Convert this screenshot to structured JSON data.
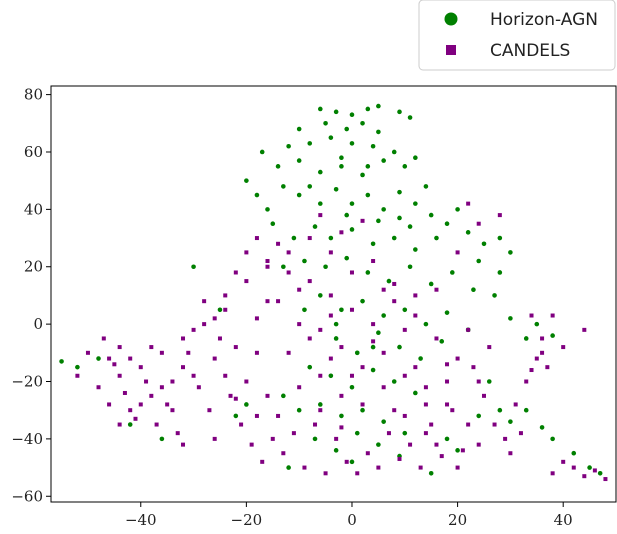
{
  "chart_data": {
    "type": "scatter",
    "title": "",
    "xlabel": "",
    "ylabel": "",
    "xlim": [
      -57,
      50
    ],
    "ylim": [
      -62,
      83
    ],
    "xticks": [
      -40,
      -20,
      0,
      20,
      40
    ],
    "yticks": [
      -60,
      -40,
      -20,
      0,
      20,
      40,
      60,
      80
    ],
    "grid": false,
    "legend_position": "top-right",
    "series": [
      {
        "name": "Horizon-AGN",
        "marker": "circle",
        "color": "#008000",
        "points": [
          [
            -6,
            75
          ],
          [
            -3,
            74
          ],
          [
            0,
            73
          ],
          [
            3,
            75
          ],
          [
            5,
            76
          ],
          [
            9,
            74
          ],
          [
            11,
            72
          ],
          [
            -10,
            68
          ],
          [
            -5,
            70
          ],
          [
            -1,
            68
          ],
          [
            2,
            70
          ],
          [
            5,
            67
          ],
          [
            -8,
            63
          ],
          [
            -4,
            65
          ],
          [
            0,
            63
          ],
          [
            4,
            62
          ],
          [
            8,
            60
          ],
          [
            12,
            58
          ],
          [
            -12,
            62
          ],
          [
            -2,
            58
          ],
          [
            6,
            57
          ],
          [
            10,
            55
          ],
          [
            -14,
            55
          ],
          [
            -10,
            57
          ],
          [
            -6,
            53
          ],
          [
            -2,
            55
          ],
          [
            2,
            52
          ],
          [
            -17,
            60
          ],
          [
            -20,
            50
          ],
          [
            -18,
            45
          ],
          [
            -16,
            40
          ],
          [
            -13,
            48
          ],
          [
            -10,
            45
          ],
          [
            -6,
            42
          ],
          [
            -3,
            47
          ],
          [
            0,
            42
          ],
          [
            3,
            45
          ],
          [
            6,
            40
          ],
          [
            9,
            37
          ],
          [
            12,
            42
          ],
          [
            15,
            38
          ],
          [
            18,
            35
          ],
          [
            20,
            40
          ],
          [
            -15,
            35
          ],
          [
            -11,
            30
          ],
          [
            -7,
            34
          ],
          [
            -4,
            30
          ],
          [
            0,
            33
          ],
          [
            4,
            28
          ],
          [
            8,
            30
          ],
          [
            12,
            26
          ],
          [
            16,
            30
          ],
          [
            22,
            32
          ],
          [
            25,
            28
          ],
          [
            28,
            30
          ],
          [
            30,
            25
          ],
          [
            -9,
            22
          ],
          [
            -5,
            20
          ],
          [
            -1,
            23
          ],
          [
            3,
            18
          ],
          [
            7,
            15
          ],
          [
            11,
            20
          ],
          [
            15,
            14
          ],
          [
            19,
            18
          ],
          [
            23,
            12
          ],
          [
            27,
            10
          ],
          [
            -6,
            10
          ],
          [
            -2,
            5
          ],
          [
            2,
            8
          ],
          [
            6,
            3
          ],
          [
            10,
            5
          ],
          [
            14,
            0
          ],
          [
            18,
            4
          ],
          [
            22,
            -2
          ],
          [
            30,
            2
          ],
          [
            35,
            0
          ],
          [
            38,
            -4
          ],
          [
            -3,
            -5
          ],
          [
            1,
            -10
          ],
          [
            5,
            -3
          ],
          [
            9,
            -8
          ],
          [
            13,
            -12
          ],
          [
            17,
            -6
          ],
          [
            -8,
            -15
          ],
          [
            -4,
            -18
          ],
          [
            0,
            -22
          ],
          [
            4,
            -16
          ],
          [
            8,
            -20
          ],
          [
            12,
            -24
          ],
          [
            -13,
            -25
          ],
          [
            -10,
            -30
          ],
          [
            -6,
            -28
          ],
          [
            -2,
            -32
          ],
          [
            2,
            -30
          ],
          [
            6,
            -34
          ],
          [
            10,
            -38
          ],
          [
            -7,
            -40
          ],
          [
            -3,
            -44
          ],
          [
            1,
            -38
          ],
          [
            5,
            -42
          ],
          [
            9,
            -46
          ],
          [
            18,
            -40
          ],
          [
            20,
            -44
          ],
          [
            24,
            -32
          ],
          [
            28,
            -30
          ],
          [
            30,
            -34
          ],
          [
            33,
            -30
          ],
          [
            36,
            -36
          ],
          [
            38,
            -40
          ],
          [
            42,
            -45
          ],
          [
            45,
            -50
          ],
          [
            47,
            -52
          ],
          [
            -30,
            20
          ],
          [
            -25,
            5
          ],
          [
            -36,
            -40
          ],
          [
            -42,
            -35
          ],
          [
            -48,
            -12
          ],
          [
            -52,
            -15
          ],
          [
            -55,
            -13
          ],
          [
            -20,
            -28
          ],
          [
            -22,
            -32
          ],
          [
            0,
            -48
          ],
          [
            -12,
            -50
          ],
          [
            15,
            -52
          ],
          [
            3,
            55
          ],
          [
            -8,
            48
          ],
          [
            9,
            46
          ],
          [
            14,
            48
          ],
          [
            -1,
            38
          ],
          [
            5,
            36
          ],
          [
            11,
            34
          ],
          [
            -13,
            20
          ],
          [
            -9,
            5
          ],
          [
            -3,
            0
          ],
          [
            4,
            -8
          ],
          [
            24,
            22
          ],
          [
            28,
            18
          ],
          [
            26,
            -20
          ],
          [
            33,
            -5
          ]
        ]
      },
      {
        "name": "CANDELS",
        "marker": "square",
        "color": "#800080",
        "points": [
          [
            -48,
            -22
          ],
          [
            -46,
            -28
          ],
          [
            -44,
            -18
          ],
          [
            -42,
            -30
          ],
          [
            -40,
            -15
          ],
          [
            -38,
            -25
          ],
          [
            -36,
            -10
          ],
          [
            -34,
            -20
          ],
          [
            -32,
            -5
          ],
          [
            -30,
            -18
          ],
          [
            -28,
            0
          ],
          [
            -26,
            -12
          ],
          [
            -24,
            5
          ],
          [
            -22,
            -8
          ],
          [
            -20,
            15
          ],
          [
            -18,
            2
          ],
          [
            -16,
            20
          ],
          [
            -14,
            8
          ],
          [
            -12,
            25
          ],
          [
            -10,
            12
          ],
          [
            -8,
            30
          ],
          [
            -6,
            -2
          ],
          [
            -4,
            10
          ],
          [
            -2,
            -8
          ],
          [
            0,
            5
          ],
          [
            2,
            -15
          ],
          [
            4,
            0
          ],
          [
            6,
            -10
          ],
          [
            8,
            8
          ],
          [
            10,
            -18
          ],
          [
            12,
            3
          ],
          [
            14,
            -22
          ],
          [
            16,
            -5
          ],
          [
            18,
            -28
          ],
          [
            20,
            -12
          ],
          [
            22,
            -2
          ],
          [
            24,
            -20
          ],
          [
            26,
            -8
          ],
          [
            -50,
            -10
          ],
          [
            -47,
            -5
          ],
          [
            -45,
            -14
          ],
          [
            -43,
            -24
          ],
          [
            -41,
            -33
          ],
          [
            -39,
            -20
          ],
          [
            -37,
            -35
          ],
          [
            -35,
            -28
          ],
          [
            -33,
            -38
          ],
          [
            -31,
            -10
          ],
          [
            -29,
            -22
          ],
          [
            -27,
            -30
          ],
          [
            -25,
            -5
          ],
          [
            -23,
            -25
          ],
          [
            -21,
            -35
          ],
          [
            -19,
            -42
          ],
          [
            -17,
            -48
          ],
          [
            -15,
            -40
          ],
          [
            -13,
            -45
          ],
          [
            -11,
            -38
          ],
          [
            -9,
            -50
          ],
          [
            -7,
            -35
          ],
          [
            -5,
            -52
          ],
          [
            -3,
            -40
          ],
          [
            -1,
            -48
          ],
          [
            1,
            -52
          ],
          [
            3,
            -45
          ],
          [
            5,
            -50
          ],
          [
            7,
            -38
          ],
          [
            9,
            -47
          ],
          [
            11,
            -42
          ],
          [
            13,
            -50
          ],
          [
            15,
            -35
          ],
          [
            17,
            -46
          ],
          [
            19,
            -30
          ],
          [
            21,
            -44
          ],
          [
            23,
            -15
          ],
          [
            25,
            -25
          ],
          [
            27,
            -35
          ],
          [
            29,
            -40
          ],
          [
            31,
            -28
          ],
          [
            33,
            -20
          ],
          [
            35,
            -12
          ],
          [
            37,
            -15
          ],
          [
            36,
            -5
          ],
          [
            34,
            3
          ],
          [
            38,
            3
          ],
          [
            40,
            -8
          ],
          [
            44,
            -2
          ],
          [
            -20,
            25
          ],
          [
            -18,
            30
          ],
          [
            -16,
            22
          ],
          [
            -14,
            28
          ],
          [
            -12,
            18
          ],
          [
            -22,
            18
          ],
          [
            -24,
            10
          ],
          [
            -26,
            2
          ],
          [
            -28,
            8
          ],
          [
            -30,
            -2
          ],
          [
            -32,
            -15
          ],
          [
            -34,
            -30
          ],
          [
            -20,
            -20
          ],
          [
            -18,
            -10
          ],
          [
            -16,
            -25
          ],
          [
            -14,
            -32
          ],
          [
            -10,
            -22
          ],
          [
            -6,
            -18
          ],
          [
            -2,
            -25
          ],
          [
            2,
            -28
          ],
          [
            6,
            -22
          ],
          [
            10,
            -32
          ],
          [
            14,
            -38
          ],
          [
            18,
            -20
          ],
          [
            22,
            -35
          ],
          [
            -8,
            15
          ],
          [
            -4,
            25
          ],
          [
            0,
            18
          ],
          [
            4,
            22
          ],
          [
            8,
            14
          ],
          [
            12,
            10
          ],
          [
            16,
            12
          ],
          [
            20,
            25
          ],
          [
            24,
            35
          ],
          [
            28,
            38
          ],
          [
            22,
            42
          ],
          [
            -4,
            -12
          ],
          [
            0,
            -18
          ],
          [
            4,
            -6
          ],
          [
            42,
            -50
          ],
          [
            44,
            -53
          ],
          [
            46,
            -51
          ],
          [
            48,
            -54
          ],
          [
            40,
            -48
          ],
          [
            38,
            -52
          ],
          [
            -44,
            -8
          ],
          [
            -46,
            -12
          ],
          [
            -52,
            -18
          ],
          [
            -42,
            -12
          ],
          [
            -38,
            -8
          ],
          [
            -36,
            -22
          ],
          [
            -24,
            -18
          ],
          [
            -22,
            -26
          ],
          [
            -6,
            -30
          ],
          [
            -2,
            -36
          ],
          [
            8,
            -30
          ],
          [
            12,
            -15
          ],
          [
            16,
            -42
          ],
          [
            20,
            -50
          ],
          [
            24,
            -42
          ],
          [
            30,
            -45
          ],
          [
            32,
            -38
          ],
          [
            -12,
            -10
          ],
          [
            -8,
            -5
          ],
          [
            -4,
            3
          ],
          [
            6,
            12
          ],
          [
            10,
            -2
          ],
          [
            -2,
            32
          ],
          [
            2,
            36
          ],
          [
            -6,
            38
          ],
          [
            18,
            -14
          ],
          [
            14,
            -28
          ],
          [
            -18,
            -32
          ],
          [
            -26,
            -40
          ],
          [
            -32,
            -42
          ],
          [
            -40,
            -28
          ],
          [
            -44,
            -35
          ],
          [
            -16,
            8
          ],
          [
            -10,
            0
          ],
          [
            36,
            -10
          ],
          [
            34,
            -16
          ]
        ]
      }
    ]
  }
}
